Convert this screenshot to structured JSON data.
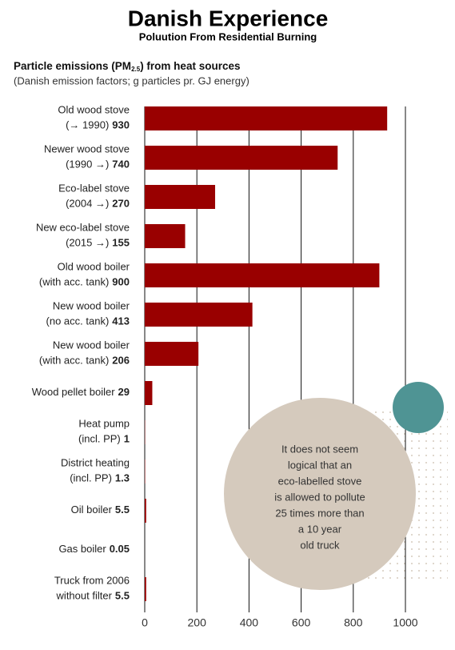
{
  "chart_data": {
    "type": "bar",
    "orientation": "horizontal",
    "title": "Danish Experience",
    "subtitle": "Poluution From Residential Burning",
    "heading": [
      "Particle emissions (PM",
      "2.5",
      ") from heat sources"
    ],
    "note": "(Danish emission factors; g particles pr. GJ energy)",
    "categories": [
      [
        "Old wood stove",
        "(→ 1990)"
      ],
      [
        "Newer wood stove",
        "(1990 →)"
      ],
      [
        "Eco-label stove",
        "(2004 →)"
      ],
      [
        "New eco-label stove",
        "(2015 →)"
      ],
      [
        "Old wood boiler",
        "(with acc. tank)"
      ],
      [
        "New wood boiler",
        "(no acc. tank)"
      ],
      [
        "New wood boiler",
        "(with acc. tank)"
      ],
      [
        "Wood pellet boiler"
      ],
      [
        "Heat pump",
        "(incl. PP)"
      ],
      [
        "District heating",
        "(incl. PP)"
      ],
      [
        "Oil boiler"
      ],
      [
        "Gas boiler"
      ],
      [
        "Truck from 2006",
        "without filter"
      ]
    ],
    "values": [
      930,
      740,
      270,
      155,
      900,
      413,
      206,
      29,
      1,
      1.3,
      5.5,
      0.05,
      5.5
    ],
    "color": "#990000",
    "xlim": [
      0,
      1000
    ],
    "xticks": [
      0,
      200,
      400,
      600,
      800,
      1000
    ],
    "grid": true,
    "annotation": [
      "It does not seem",
      "logical that an",
      "eco-labelled stove",
      "is allowed to pollute",
      "25 times more than",
      "a 10 year",
      "old truck"
    ]
  }
}
